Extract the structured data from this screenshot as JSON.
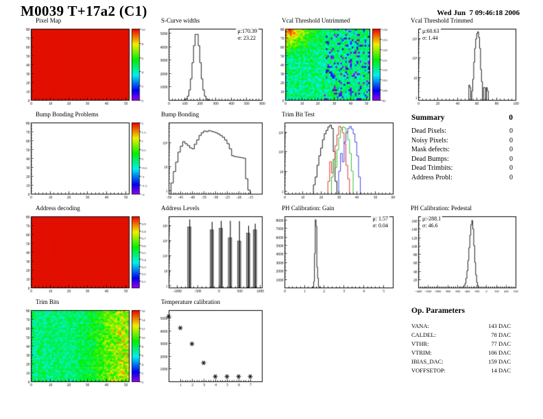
{
  "header": {
    "title": "M0039 T+17a2 (C1)",
    "datetime": "Wed Jun  7 09:46:18 2006"
  },
  "summary": {
    "title": "Summary",
    "total": "0",
    "rows": [
      {
        "label": "Dead Pixels:",
        "value": "0"
      },
      {
        "label": "Noisy Pixels:",
        "value": "0"
      },
      {
        "label": "Mask defects:",
        "value": "0"
      },
      {
        "label": "Dead Bumps:",
        "value": "0"
      },
      {
        "label": "Dead Trimbits:",
        "value": "0"
      },
      {
        "label": "Address Probl:",
        "value": "0"
      }
    ]
  },
  "op_parameters": {
    "title": "Op. Parameters",
    "rows": [
      {
        "label": "VANA:",
        "value": "143 DAC"
      },
      {
        "label": "CALDEL:",
        "value": "78 DAC"
      },
      {
        "label": "VTHR:",
        "value": "77 DAC"
      },
      {
        "label": "VTRIM:",
        "value": "106 DAC"
      },
      {
        "label": "IBIAS_DAC:",
        "value": "159 DAC"
      },
      {
        "label": "VOFFSETOP:",
        "value": "14 DAC"
      }
    ]
  },
  "palette": "rainbow (violet=low to red=high)",
  "chart_data": [
    {
      "id": "pixel_map",
      "title": "Pixel Map",
      "type": "heatmap",
      "field": "uniform",
      "xlim": [
        0,
        52
      ],
      "ylim": [
        0,
        80
      ],
      "zlim": [
        0,
        10
      ],
      "xticks": [
        0,
        10,
        20,
        30,
        40,
        50
      ],
      "yticks": [
        0,
        10,
        20,
        30,
        40,
        50,
        60,
        70,
        80
      ],
      "colorbar": {
        "ticks": [
          0,
          2,
          4,
          6,
          8,
          10
        ]
      },
      "note": "all pixels at maximum value (solid red map)"
    },
    {
      "id": "scurve_widths",
      "title": "S-Curve widths",
      "type": "histogram",
      "xlim": [
        0,
        600
      ],
      "ylim": [
        0,
        5300
      ],
      "xticks": [
        0,
        100,
        200,
        300,
        400,
        500,
        600
      ],
      "yticks": [
        1000,
        2000,
        3000,
        4000,
        5000
      ],
      "bins": {
        "first": 100,
        "w": 10,
        "counts": [
          20,
          92,
          286,
          740,
          1570,
          2770,
          4040,
          4880,
          4880,
          4040,
          2770,
          1570,
          740,
          286,
          92,
          23
        ]
      },
      "stats": {
        "mu": "μ:170.39",
        "sigma": "σ: 23.22",
        "pos": "tr"
      }
    },
    {
      "id": "vcal_untrimmed",
      "title": "Vcal Threshold Untrimmed",
      "type": "heatmap",
      "field": "vcal",
      "seed": 7,
      "xlim": [
        0,
        52
      ],
      "ylim": [
        0,
        80
      ],
      "zlim": [
        95,
        130
      ],
      "xticks": [
        0,
        10,
        20,
        30,
        40,
        50
      ],
      "yticks": [
        0,
        10,
        20,
        30,
        40,
        50,
        60,
        70,
        80
      ],
      "colorbar": {
        "ticks": [
          95,
          100,
          105,
          110,
          115,
          120,
          125,
          130
        ]
      },
      "note": "noisy map, mean ≈112; warmer (orange/red ≈125) top-left corner, scattered blue (≈100) cells on right half"
    },
    {
      "id": "vcal_trimmed",
      "title": "Vcal Threshold Trimmed",
      "type": "histogram",
      "ylog": true,
      "xlim": [
        0,
        100
      ],
      "ylim": [
        0.7,
        3000
      ],
      "xticks": [
        0,
        20,
        40,
        60,
        80,
        100
      ],
      "yticks": [
        [
          1,
          "1"
        ],
        [
          10,
          "10"
        ],
        [
          100,
          "10²"
        ],
        [
          1000,
          "10³"
        ]
      ],
      "bins": {
        "first": 52,
        "w": 1,
        "counts": [
          4,
          3,
          0,
          2,
          8,
          60,
          300,
          900,
          1700,
          2100,
          1100,
          300,
          25,
          6,
          0,
          3,
          3,
          0,
          3,
          2
        ]
      },
      "stats": {
        "mu": "μ:60.63",
        "sigma": "σ: 1.44",
        "pos": "tl"
      }
    },
    {
      "id": "bump_bonding_problems",
      "title": "Bump Bonding Problems",
      "type": "heatmap",
      "field": "empty",
      "xlim": [
        0,
        52
      ],
      "ylim": [
        0,
        80
      ],
      "zlim": [
        -2,
        2
      ],
      "xticks": [
        0,
        10,
        20,
        30,
        40,
        50
      ],
      "yticks": [
        0,
        10,
        20,
        30,
        40,
        50,
        60,
        70,
        80
      ],
      "colorbar": {
        "ticks": [
          -2,
          -1.5,
          -1,
          -0.5,
          0,
          0.5,
          1,
          1.5,
          2
        ]
      },
      "note": "no entries — empty white map"
    },
    {
      "id": "bump_bonding",
      "title": "Bump Bonding",
      "type": "histogram",
      "ylog": true,
      "xlim": [
        -50,
        -10
      ],
      "ylim": [
        0.7,
        700
      ],
      "xticks": [
        -50,
        -45,
        -40,
        -35,
        -30,
        -25,
        -20,
        -15
      ],
      "yticks": [
        [
          1,
          "1"
        ],
        [
          10,
          "10"
        ],
        [
          100,
          "10²"
        ]
      ],
      "bins": {
        "first": -49,
        "w": 1,
        "counts": [
          2,
          6,
          15,
          40,
          70,
          110,
          90,
          75,
          60,
          55,
          85,
          130,
          200,
          260,
          310,
          290,
          320,
          300,
          280,
          260,
          230,
          200,
          170,
          130,
          90,
          55,
          28,
          26,
          25,
          24,
          23,
          22,
          3,
          1
        ]
      }
    },
    {
      "id": "trim_bit_test",
      "title": "Trim Bit Test",
      "type": "multihist",
      "ylog": true,
      "xlim": [
        0,
        60
      ],
      "ylim": [
        0.7,
        3000
      ],
      "xticks": [
        0,
        10,
        20,
        30,
        40,
        50,
        60
      ],
      "yticks": [
        [
          1,
          "1"
        ],
        [
          10,
          "10"
        ],
        [
          100,
          "10²"
        ],
        [
          1000,
          "10³"
        ]
      ],
      "series": [
        {
          "name": "black",
          "color": "#101010",
          "first": 16,
          "w": 1,
          "counts": [
            2,
            5,
            20,
            60,
            150,
            400,
            800,
            1200,
            1800,
            2200,
            1500,
            100,
            3
          ]
        },
        {
          "name": "red",
          "color": "#e03030",
          "first": 24,
          "w": 1,
          "counts": [
            3,
            30,
            8,
            40,
            200,
            700,
            1900,
            1600,
            900,
            250,
            20,
            4
          ]
        },
        {
          "name": "green",
          "color": "#30c030",
          "first": 26,
          "w": 1,
          "counts": [
            5,
            40,
            15,
            120,
            500,
            1300,
            1800,
            1600,
            1000,
            400,
            80,
            10
          ]
        },
        {
          "name": "blue",
          "color": "#4040e0",
          "first": 30,
          "w": 1,
          "counts": [
            10,
            80,
            30,
            300,
            900,
            1500,
            1900,
            1400,
            800,
            300,
            60,
            5
          ]
        }
      ]
    },
    {
      "id": "address_decoding",
      "title": "Address decoding",
      "type": "heatmap",
      "field": "uniform",
      "xlim": [
        0,
        52
      ],
      "ylim": [
        0,
        80
      ],
      "zlim": [
        0,
        1
      ],
      "xticks": [
        0,
        10,
        20,
        30,
        40,
        50
      ],
      "yticks": [
        0,
        10,
        20,
        30,
        40,
        50,
        60,
        70,
        80
      ],
      "colorbar": {
        "ticks": [
          0.1,
          0.2,
          0.3,
          0.4,
          0.5,
          0.6,
          0.7,
          0.8,
          0.9
        ]
      },
      "note": "all pixels decode correctly (solid red map)"
    },
    {
      "id": "address_levels",
      "title": "Address Levels",
      "type": "spikes",
      "ylog": true,
      "xlim": [
        -1200,
        1050
      ],
      "ylim": [
        0.7,
        40000
      ],
      "xticks": [
        -1000,
        -500,
        0,
        500,
        1000
      ],
      "yticks": [
        [
          1,
          "1"
        ],
        [
          10,
          "10"
        ],
        [
          100,
          "10²"
        ],
        [
          1000,
          "10³"
        ],
        [
          10000,
          "10⁴"
        ]
      ],
      "spikes": [
        {
          "x": -700,
          "gray": 8000,
          "black": 25000
        },
        {
          "x": -160,
          "gray": 5000,
          "black": 17000
        },
        {
          "x": 60,
          "gray": 6500,
          "black": 20000
        },
        {
          "x": 280,
          "gray": 1500,
          "black": 20000
        },
        {
          "x": 500,
          "gray": 900,
          "black": 19000
        },
        {
          "x": 720,
          "gray": 3000,
          "black": 9500
        },
        {
          "x": 880,
          "gray": 5000,
          "black": 13000
        }
      ]
    },
    {
      "id": "ph_gain",
      "title": "PH Calibration: Gain",
      "type": "histogram",
      "xlim": [
        0,
        5.5
      ],
      "ylim": [
        0,
        8400
      ],
      "xticks": [
        0,
        1,
        2,
        3,
        4,
        5
      ],
      "yticks": [
        1000,
        2000,
        3000,
        4000,
        5000,
        6000,
        7000,
        8000
      ],
      "bins": {
        "first": 1.4,
        "w": 0.04,
        "counts": [
          5,
          60,
          700,
          4000,
          8000,
          7200,
          2400,
          1100,
          150,
          10
        ]
      },
      "stats": {
        "mu": "μ: 1.57",
        "sigma": "σ: 0.04",
        "pos": "tr"
      }
    },
    {
      "id": "ph_pedestal",
      "title": "PH Calibration: Pedestal",
      "type": "histogram",
      "xlim": [
        -1400,
        600
      ],
      "ylim": [
        0,
        170
      ],
      "xticks": [
        -1400,
        -1200,
        -1000,
        -800,
        -600,
        -400,
        -200,
        0,
        200,
        400,
        600
      ],
      "yticks": [
        20,
        40,
        60,
        80,
        100,
        120,
        140,
        160
      ],
      "bins": {
        "first": -480,
        "w": 20,
        "counts": [
          2,
          5,
          10,
          22,
          40,
          65,
          95,
          125,
          150,
          160,
          140,
          100,
          60,
          30,
          12,
          4
        ]
      },
      "stats": {
        "mu": "μ:-288.1",
        "sigma": "σ: 46.6",
        "pos": "tl"
      }
    },
    {
      "id": "trim_bits",
      "title": "Trim Bits",
      "type": "heatmap",
      "field": "trimbits",
      "seed": 11,
      "xlim": [
        0,
        52
      ],
      "ylim": [
        0,
        80
      ],
      "zlim": [
        0,
        16
      ],
      "xticks": [
        0,
        10,
        20,
        30,
        40,
        50
      ],
      "yticks": [
        0,
        10,
        20,
        30,
        40,
        50,
        60,
        70,
        80
      ],
      "colorbar": {
        "ticks": [
          0,
          2,
          4,
          6,
          8,
          10,
          12,
          14,
          16
        ]
      },
      "note": "noisy green map mean ≈8 with warmer (orange ≈12) band toward right edge"
    },
    {
      "id": "temperature_calibration",
      "title": "Temperature calibration",
      "type": "scatter",
      "xlim": [
        0,
        8
      ],
      "ylim": [
        0,
        5600
      ],
      "xticks": [
        1,
        2,
        3,
        4,
        5,
        6,
        7
      ],
      "yticks": [
        1000,
        2000,
        3000,
        4000,
        5000
      ],
      "points": [
        [
          0,
          5100
        ],
        [
          1,
          4200
        ],
        [
          2,
          2950
        ],
        [
          3,
          1450
        ],
        [
          4,
          380
        ],
        [
          5,
          380
        ],
        [
          6,
          380
        ],
        [
          7,
          380
        ]
      ],
      "marker": "asterisk"
    }
  ]
}
